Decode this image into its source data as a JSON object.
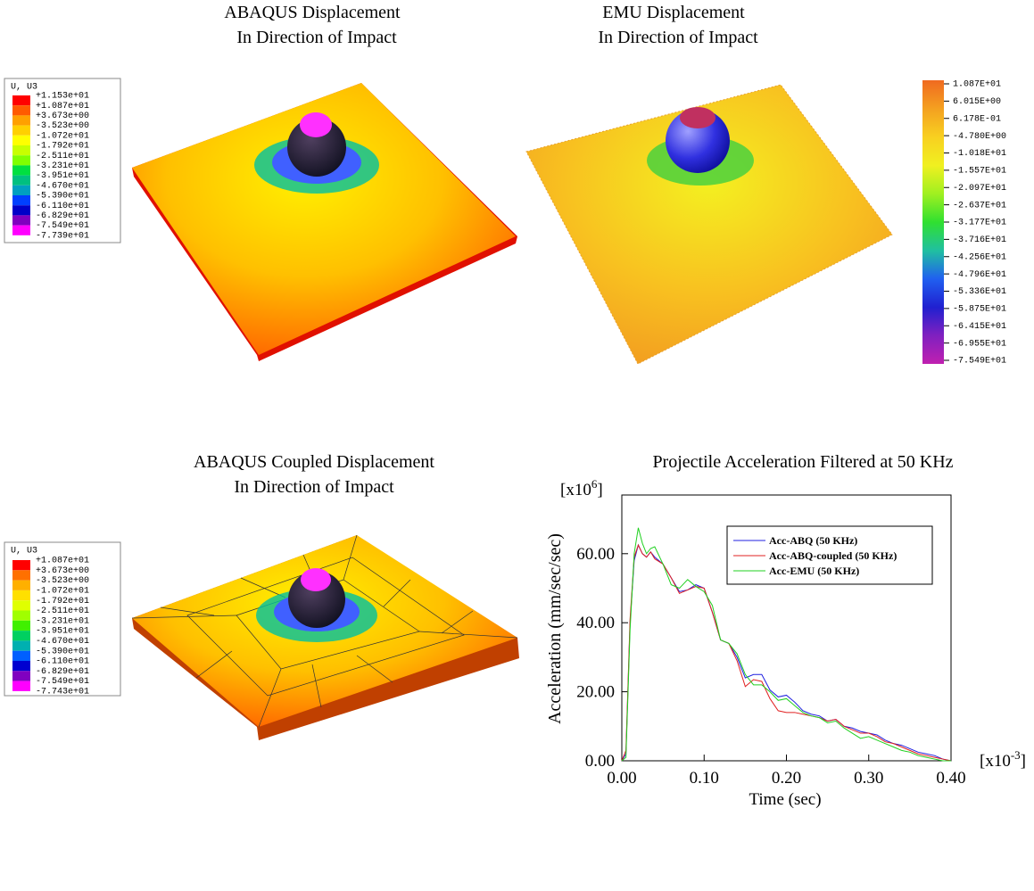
{
  "panels": [
    {
      "title": [
        "ABAQUS Displacement",
        "In Direction of Impact"
      ],
      "legend": {
        "header": "U, U3",
        "labels": [
          "+1.153e+01",
          "+1.087e+01",
          "+3.673e+00",
          "-3.523e+00",
          "-1.072e+01",
          "-1.792e+01",
          "-2.511e+01",
          "-3.231e+01",
          "-3.951e+01",
          "-4.670e+01",
          "-5.390e+01",
          "-6.110e+01",
          "-6.829e+01",
          "-7.549e+01",
          "-7.739e+01"
        ],
        "colors": [
          "#ff0000",
          "#ff5a00",
          "#ffa000",
          "#ffd000",
          "#ffff00",
          "#c8ff00",
          "#80ff00",
          "#00e040",
          "#00c080",
          "#00a0c0",
          "#0040ff",
          "#0000c8",
          "#8000c0",
          "#ff00ff"
        ]
      }
    },
    {
      "title": [
        "EMU Displacement",
        "In Direction of Impact"
      ],
      "colorbar": {
        "labels": [
          "1.087E+01",
          "6.015E+00",
          "6.178E-01",
          "-4.780E+00",
          "-1.018E+01",
          "-1.557E+01",
          "-2.097E+01",
          "-2.637E+01",
          "-3.177E+01",
          "-3.716E+01",
          "-4.256E+01",
          "-4.796E+01",
          "-5.336E+01",
          "-5.875E+01",
          "-6.415E+01",
          "-6.955E+01",
          "-7.549E+01"
        ],
        "colors": [
          "#f06a20",
          "#f4a020",
          "#f8d020",
          "#f0f020",
          "#a0f020",
          "#30e030",
          "#20c0a0",
          "#2060f0",
          "#2020d0",
          "#8020c0",
          "#c020b0"
        ]
      }
    },
    {
      "title": [
        "ABAQUS Coupled Displacement",
        "In Direction of Impact"
      ],
      "legend": {
        "header": "U, U3",
        "labels": [
          "+1.087e+01",
          "+3.673e+00",
          "-3.523e+00",
          "-1.072e+01",
          "-1.792e+01",
          "-2.511e+01",
          "-3.231e+01",
          "-3.951e+01",
          "-4.670e+01",
          "-5.390e+01",
          "-6.110e+01",
          "-6.829e+01",
          "-7.549e+01",
          "-7.743e+01"
        ],
        "colors": [
          "#ff0000",
          "#ff7000",
          "#ffb000",
          "#ffe000",
          "#e0ff00",
          "#a0ff00",
          "#40f000",
          "#00d060",
          "#00b0b0",
          "#0060ff",
          "#0000d0",
          "#8000c0",
          "#ff00ff"
        ]
      }
    }
  ],
  "chart_data": {
    "type": "line",
    "title": "Projectile Acceleration Filtered at 50 KHz",
    "x_label": "Time (sec)",
    "y_label": "Acceleration (mm/sec/sec)",
    "y_multiplier": {
      "prefix": "[x10",
      "exp": "6",
      "suffix": "]"
    },
    "x_multiplier": {
      "prefix": "[x10",
      "exp": "-3",
      "suffix": "]"
    },
    "xlim": [
      0,
      0.4
    ],
    "ylim": [
      0,
      77
    ],
    "xticks": [
      {
        "value": 0,
        "label": "0.00"
      },
      {
        "value": 0.1,
        "label": "0.10"
      },
      {
        "value": 0.2,
        "label": "0.20"
      },
      {
        "value": 0.3,
        "label": "0.30"
      },
      {
        "value": 0.4,
        "label": "0.40"
      }
    ],
    "yticks": [
      {
        "value": 0,
        "label": "0.00"
      },
      {
        "value": 20,
        "label": "20.00"
      },
      {
        "value": 40,
        "label": "40.00"
      },
      {
        "value": 60,
        "label": "60.00"
      }
    ],
    "x": [
      0,
      0.005,
      0.01,
      0.015,
      0.02,
      0.025,
      0.03,
      0.035,
      0.04,
      0.05,
      0.06,
      0.07,
      0.08,
      0.09,
      0.1,
      0.11,
      0.12,
      0.13,
      0.14,
      0.15,
      0.16,
      0.17,
      0.18,
      0.19,
      0.2,
      0.21,
      0.22,
      0.23,
      0.24,
      0.25,
      0.26,
      0.27,
      0.28,
      0.29,
      0.3,
      0.31,
      0.32,
      0.33,
      0.34,
      0.35,
      0.36,
      0.37,
      0.38,
      0.39,
      0.4
    ],
    "series": [
      {
        "name": "Acc-ABQ (50 KHz)",
        "color": "#2020e0",
        "values": [
          0,
          2,
          40,
          58,
          62.5,
          60,
          59,
          60.5,
          59,
          57,
          53,
          49,
          49.5,
          51,
          50,
          43,
          35,
          34,
          30,
          24,
          25,
          25,
          20.5,
          18.5,
          19,
          17,
          14.5,
          13.5,
          13,
          11.5,
          12,
          10,
          9.5,
          8.5,
          8,
          7.5,
          6,
          5,
          4.5,
          3.5,
          2.5,
          2,
          1.5,
          0.5,
          0
        ]
      },
      {
        "name": "Acc-ABQ-coupled (50 KHz)",
        "color": "#e02020",
        "values": [
          0,
          3,
          41,
          59,
          62.5,
          60,
          59,
          60.5,
          58.5,
          57,
          53,
          48.5,
          49.5,
          50.5,
          50,
          43,
          35,
          34,
          29,
          21.5,
          23.5,
          23,
          18,
          14.5,
          14,
          14,
          13.5,
          13,
          12.5,
          11.5,
          12,
          10,
          9,
          8,
          8,
          7,
          5.5,
          5,
          4,
          3,
          2,
          1.5,
          1,
          0.5,
          0
        ]
      },
      {
        "name": "Acc-EMU (50 KHz)",
        "color": "#20d020",
        "values": [
          0,
          1,
          38,
          60,
          67.5,
          63,
          60,
          61.5,
          62,
          57,
          51,
          50,
          52.5,
          50.5,
          49,
          45,
          35,
          34,
          31,
          25,
          22,
          22,
          20,
          17.5,
          18,
          16,
          14,
          13,
          12.5,
          11,
          11.5,
          9.5,
          8,
          6.5,
          7,
          6,
          5,
          4,
          3,
          2.5,
          1.5,
          1,
          0.5,
          0,
          0
        ]
      }
    ],
    "legend": "upper right"
  }
}
